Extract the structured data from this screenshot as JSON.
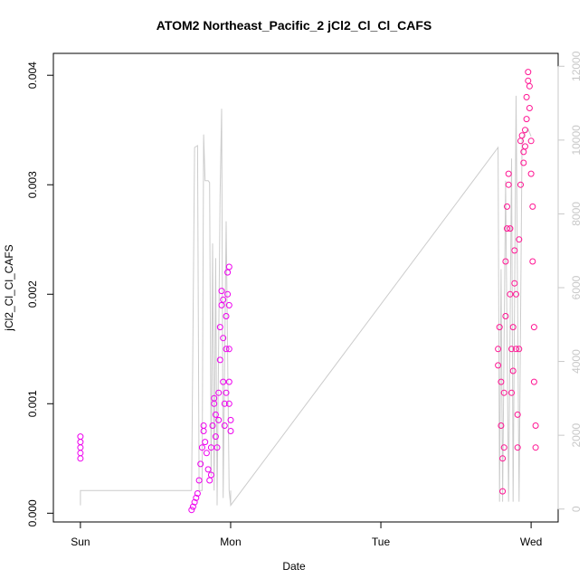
{
  "chart_data": {
    "type": "scatter",
    "title": "ATOM2 Northeast_Pacific_2 jCl2_Cl_Cl_CAFS",
    "xlabel": "Date",
    "ylabel": "jCl2_Cl_Cl_CAFS",
    "x_axis": {
      "ticks": [
        0,
        1,
        2,
        3
      ],
      "tick_labels": [
        "Sun",
        "Mon",
        "Tue",
        "Wed"
      ],
      "unit": "days",
      "range": [
        -0.18,
        3.18
      ]
    },
    "y_left": {
      "range": [
        -8e-05,
        0.0042
      ],
      "ticks": [
        0.0,
        0.001,
        0.002,
        0.003,
        0.004
      ],
      "tick_labels": [
        "0.000",
        "0.001",
        "0.002",
        "0.003",
        "0.004"
      ]
    },
    "y_right": {
      "range": [
        -350,
        12350
      ],
      "ticks": [
        0,
        2000,
        4000,
        6000,
        8000,
        10000,
        12000
      ],
      "tick_labels": [
        "0",
        "2000",
        "4000",
        "6000",
        "8000",
        "10000",
        "12000"
      ],
      "color": "#c8c8c8"
    },
    "colors": {
      "series_mon": "#ee00ee",
      "series_wed": "#ff1493",
      "altitude": "#cccccc"
    },
    "series": [
      {
        "marker": "open-circle",
        "axis": "left",
        "points": [
          [
            0.0,
            0.0005
          ],
          [
            0.0,
            0.00055
          ],
          [
            0.0,
            0.0006
          ],
          [
            0.0,
            0.00065
          ],
          [
            0.0,
            0.0007
          ],
          [
            0.74,
            3e-05
          ],
          [
            0.75,
            6e-05
          ],
          [
            0.76,
            0.0001
          ],
          [
            0.77,
            0.00014
          ],
          [
            0.78,
            0.00018
          ],
          [
            0.79,
            0.0003
          ],
          [
            0.8,
            0.00045
          ],
          [
            0.81,
            0.0006
          ],
          [
            0.82,
            0.00075
          ],
          [
            0.82,
            0.0008
          ],
          [
            0.83,
            0.00065
          ],
          [
            0.84,
            0.00055
          ],
          [
            0.85,
            0.0004
          ],
          [
            0.86,
            0.0003
          ],
          [
            0.87,
            0.00035
          ],
          [
            0.87,
            0.0006
          ],
          [
            0.88,
            0.0008
          ],
          [
            0.89,
            0.001
          ],
          [
            0.89,
            0.00105
          ],
          [
            0.9,
            0.0009
          ],
          [
            0.9,
            0.0007
          ],
          [
            0.91,
            0.0006
          ],
          [
            0.92,
            0.00085
          ],
          [
            0.92,
            0.0011
          ],
          [
            0.93,
            0.0014
          ],
          [
            0.93,
            0.0017
          ],
          [
            0.94,
            0.0019
          ],
          [
            0.94,
            0.00203
          ],
          [
            0.95,
            0.00195
          ],
          [
            0.95,
            0.0016
          ],
          [
            0.95,
            0.0012
          ],
          [
            0.96,
            0.001
          ],
          [
            0.96,
            0.0008
          ],
          [
            0.97,
            0.0011
          ],
          [
            0.97,
            0.0015
          ],
          [
            0.97,
            0.0018
          ],
          [
            0.98,
            0.002
          ],
          [
            0.98,
            0.0022
          ],
          [
            0.99,
            0.00225
          ],
          [
            0.99,
            0.0019
          ],
          [
            0.99,
            0.0015
          ],
          [
            0.99,
            0.0012
          ],
          [
            0.99,
            0.001
          ],
          [
            1.0,
            0.00085
          ],
          [
            1.0,
            0.00075
          ]
        ]
      },
      {
        "marker": "open-circle",
        "axis": "left",
        "points": [
          [
            2.78,
            0.00135
          ],
          [
            2.78,
            0.0015
          ],
          [
            2.79,
            0.0017
          ],
          [
            2.8,
            0.0012
          ],
          [
            2.8,
            0.0008
          ],
          [
            2.81,
            0.0005
          ],
          [
            2.81,
            0.0002
          ],
          [
            2.82,
            0.0006
          ],
          [
            2.82,
            0.0011
          ],
          [
            2.83,
            0.0018
          ],
          [
            2.83,
            0.0023
          ],
          [
            2.84,
            0.0026
          ],
          [
            2.84,
            0.0028
          ],
          [
            2.85,
            0.003
          ],
          [
            2.85,
            0.0031
          ],
          [
            2.86,
            0.0026
          ],
          [
            2.86,
            0.002
          ],
          [
            2.87,
            0.0015
          ],
          [
            2.87,
            0.0011
          ],
          [
            2.88,
            0.0013
          ],
          [
            2.88,
            0.0017
          ],
          [
            2.89,
            0.0021
          ],
          [
            2.89,
            0.0024
          ],
          [
            2.9,
            0.002
          ],
          [
            2.9,
            0.0015
          ],
          [
            2.91,
            0.0009
          ],
          [
            2.91,
            0.0006
          ],
          [
            2.92,
            0.0015
          ],
          [
            2.92,
            0.0025
          ],
          [
            2.93,
            0.003
          ],
          [
            2.93,
            0.0034
          ],
          [
            2.94,
            0.00345
          ],
          [
            2.95,
            0.0033
          ],
          [
            2.95,
            0.0032
          ],
          [
            2.96,
            0.00335
          ],
          [
            2.96,
            0.0035
          ],
          [
            2.97,
            0.0036
          ],
          [
            2.97,
            0.0038
          ],
          [
            2.98,
            0.00395
          ],
          [
            2.98,
            0.00403
          ],
          [
            2.99,
            0.0039
          ],
          [
            2.99,
            0.0037
          ],
          [
            3.0,
            0.0034
          ],
          [
            3.0,
            0.0031
          ],
          [
            3.01,
            0.0028
          ],
          [
            3.01,
            0.0023
          ],
          [
            3.02,
            0.0017
          ],
          [
            3.02,
            0.0012
          ],
          [
            3.03,
            0.0008
          ],
          [
            3.03,
            0.0006
          ]
        ]
      },
      {
        "name": "altitude",
        "type": "line",
        "axis": "right",
        "points": [
          [
            0.0,
            100
          ],
          [
            0.0,
            500
          ],
          [
            0.74,
            500
          ],
          [
            0.76,
            9800
          ],
          [
            0.78,
            9850
          ],
          [
            0.79,
            500
          ],
          [
            0.81,
            500
          ],
          [
            0.82,
            10150
          ],
          [
            0.83,
            8900
          ],
          [
            0.85,
            8900
          ],
          [
            0.86,
            8850
          ],
          [
            0.87,
            900
          ],
          [
            0.88,
            7200
          ],
          [
            0.89,
            500
          ],
          [
            0.9,
            6800
          ],
          [
            0.91,
            100
          ],
          [
            0.93,
            8500
          ],
          [
            0.94,
            10850
          ],
          [
            0.95,
            300
          ],
          [
            0.97,
            7800
          ],
          [
            0.99,
            500
          ],
          [
            1.0,
            100
          ],
          [
            1.0,
            500
          ],
          [
            1.0,
            100
          ],
          [
            2.78,
            9800
          ],
          [
            2.79,
            200
          ],
          [
            2.8,
            6500
          ],
          [
            2.81,
            200
          ],
          [
            2.83,
            8900
          ],
          [
            2.85,
            200
          ],
          [
            2.87,
            9500
          ],
          [
            2.88,
            200
          ],
          [
            2.9,
            11200
          ],
          [
            2.92,
            200
          ],
          [
            2.94,
            10000
          ],
          [
            2.96,
            10200
          ],
          [
            2.98,
            10300
          ],
          [
            3.0,
            10100
          ]
        ]
      }
    ]
  }
}
